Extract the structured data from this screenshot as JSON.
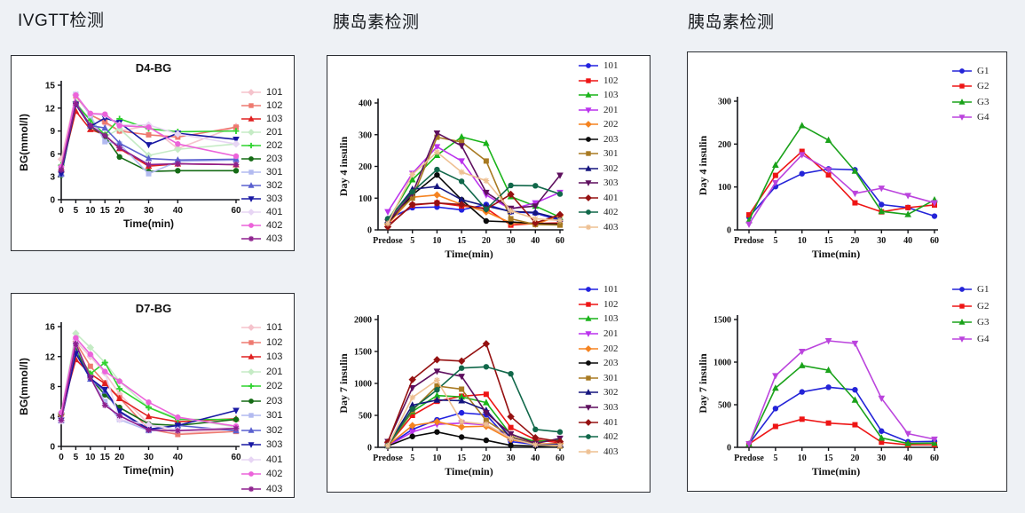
{
  "page": {
    "background": "#eef1f5",
    "panel_background": "#ffffff",
    "panel_border": "#2b2e33"
  },
  "headers": [
    {
      "id": "ivgtt",
      "text": "IVGTT检测"
    },
    {
      "id": "insulin1",
      "text": "胰岛素检测"
    },
    {
      "id": "insulin2",
      "text": "胰岛素检测"
    }
  ],
  "chart_data": [
    {
      "id": "d4_bg",
      "type": "line",
      "title": "D4-BG",
      "ylabel": "BG(mmol/l)",
      "xlabel": "Time(min)",
      "x_mode": "linear",
      "x_values": [
        0,
        5,
        10,
        15,
        20,
        30,
        40,
        60
      ],
      "x_ticks": [
        "0",
        "5",
        "10",
        "15",
        "20",
        "30",
        "40",
        "60"
      ],
      "ylim": [
        0,
        15
      ],
      "y_ticks": [
        0,
        3,
        6,
        9,
        12,
        15
      ],
      "legend_position": "right",
      "grid": false,
      "series": [
        {
          "name": "101",
          "color": "#f5c3cc",
          "marker": "diamond",
          "values": [
            5.3,
            13.7,
            11.2,
            10.0,
            9.0,
            9.7,
            6.7,
            9.6
          ]
        },
        {
          "name": "102",
          "color": "#ee7a70",
          "marker": "square",
          "values": [
            4.0,
            13.6,
            11.1,
            10.2,
            9.0,
            8.5,
            8.2,
            9.5
          ]
        },
        {
          "name": "103",
          "color": "#e02020",
          "marker": "triangle",
          "values": [
            3.9,
            11.6,
            9.2,
            8.5,
            6.7,
            4.4,
            4.7,
            4.6
          ]
        },
        {
          "name": "201",
          "color": "#c5ebc5",
          "marker": "diamond",
          "values": [
            4.5,
            12.8,
            10.3,
            8.2,
            9.3,
            5.8,
            6.6,
            7.3
          ]
        },
        {
          "name": "202",
          "color": "#2fd32f",
          "marker": "plus",
          "values": [
            4.5,
            12.6,
            10.4,
            8.5,
            10.6,
            9.3,
            8.9,
            9.0
          ]
        },
        {
          "name": "203",
          "color": "#156b15",
          "marker": "circle",
          "values": [
            3.2,
            12.5,
            9.6,
            8.3,
            5.6,
            3.7,
            3.8,
            3.8
          ]
        },
        {
          "name": "301",
          "color": "#b2baf0",
          "marker": "square",
          "values": [
            3.3,
            13.8,
            11.0,
            7.6,
            7.3,
            3.4,
            5.0,
            5.2
          ]
        },
        {
          "name": "302",
          "color": "#5a60cf",
          "marker": "triangle",
          "values": [
            3.4,
            12.7,
            9.7,
            9.4,
            7.4,
            5.4,
            5.2,
            5.3
          ]
        },
        {
          "name": "303",
          "color": "#1818a3",
          "marker": "triangle-down",
          "values": [
            3.4,
            12.5,
            9.6,
            10.7,
            10.1,
            7.2,
            8.7,
            7.9
          ]
        },
        {
          "name": "401",
          "color": "#e7d5f4",
          "marker": "diamond",
          "values": [
            4.3,
            13.8,
            11.2,
            11.1,
            9.8,
            9.8,
            8.6,
            7.3
          ]
        },
        {
          "name": "402",
          "color": "#ec63da",
          "marker": "circle",
          "values": [
            4.3,
            13.7,
            11.3,
            11.2,
            9.7,
            9.5,
            7.3,
            5.7
          ]
        },
        {
          "name": "403",
          "color": "#8d1f8d",
          "marker": "star",
          "values": [
            3.9,
            12.6,
            9.7,
            8.4,
            6.8,
            4.6,
            4.7,
            4.6
          ]
        }
      ]
    },
    {
      "id": "d7_bg",
      "type": "line",
      "title": "D7-BG",
      "ylabel": "BG(mmol/l)",
      "xlabel": "Time(min)",
      "x_mode": "linear",
      "x_values": [
        0,
        5,
        10,
        15,
        20,
        30,
        40,
        60
      ],
      "x_ticks": [
        "0",
        "5",
        "10",
        "15",
        "20",
        "30",
        "40",
        "60"
      ],
      "ylim": [
        0,
        16
      ],
      "y_ticks": [
        0,
        4,
        8,
        12,
        16
      ],
      "legend_position": "right",
      "grid": false,
      "series": [
        {
          "name": "101",
          "color": "#f5c3cc",
          "marker": "diamond",
          "values": [
            4.4,
            14.0,
            12.0,
            9.8,
            7.0,
            3.0,
            1.7,
            2.3
          ]
        },
        {
          "name": "102",
          "color": "#ee7a70",
          "marker": "square",
          "values": [
            4.3,
            13.9,
            10.7,
            8.5,
            6.5,
            2.3,
            1.6,
            2.0
          ]
        },
        {
          "name": "103",
          "color": "#e02020",
          "marker": "triangle",
          "values": [
            4.5,
            11.6,
            9.7,
            8.4,
            6.4,
            4.0,
            3.3,
            3.7
          ]
        },
        {
          "name": "201",
          "color": "#c5ebc5",
          "marker": "diamond",
          "values": [
            4.5,
            15.1,
            13.2,
            11.2,
            8.7,
            5.2,
            3.8,
            2.6
          ]
        },
        {
          "name": "202",
          "color": "#2fd32f",
          "marker": "plus",
          "values": [
            4.4,
            12.9,
            9.7,
            11.2,
            7.7,
            5.2,
            3.6,
            3.6
          ]
        },
        {
          "name": "203",
          "color": "#156b15",
          "marker": "circle",
          "values": [
            4.4,
            12.8,
            9.1,
            6.9,
            5.2,
            3.0,
            2.8,
            3.6
          ]
        },
        {
          "name": "301",
          "color": "#b2baf0",
          "marker": "square",
          "values": [
            3.4,
            13.6,
            9.2,
            6.0,
            3.6,
            2.1,
            2.2,
            2.4
          ]
        },
        {
          "name": "302",
          "color": "#5a60cf",
          "marker": "triangle",
          "values": [
            3.5,
            12.5,
            9.0,
            7.4,
            4.6,
            2.2,
            2.8,
            2.1
          ]
        },
        {
          "name": "303",
          "color": "#1818a3",
          "marker": "triangle-down",
          "values": [
            3.5,
            12.4,
            9.1,
            7.6,
            4.7,
            2.3,
            2.8,
            4.8
          ]
        },
        {
          "name": "401",
          "color": "#e7d5f4",
          "marker": "diamond",
          "values": [
            3.4,
            14.3,
            12.2,
            9.9,
            3.6,
            2.9,
            2.2,
            2.5
          ]
        },
        {
          "name": "402",
          "color": "#ec63da",
          "marker": "circle",
          "values": [
            4.5,
            14.5,
            12.3,
            10.0,
            8.7,
            5.9,
            3.9,
            2.7
          ]
        },
        {
          "name": "403",
          "color": "#8d1f8d",
          "marker": "star",
          "values": [
            3.5,
            13.7,
            9.2,
            5.5,
            4.1,
            2.2,
            2.1,
            2.4
          ]
        }
      ]
    },
    {
      "id": "day4_insulin_all",
      "type": "line",
      "title": "",
      "ylabel": "Day 4 insulin",
      "xlabel": "Time(min)",
      "x_mode": "categorical",
      "x_ticks": [
        "Predose",
        "5",
        "10",
        "15",
        "20",
        "30",
        "40",
        "60"
      ],
      "ylim": [
        0,
        400
      ],
      "y_ticks": [
        0,
        100,
        200,
        300,
        400
      ],
      "legend_position": "right",
      "grid": false,
      "series": [
        {
          "name": "101",
          "color": "#2222e0",
          "marker": "circle",
          "values": [
            35,
            70,
            72,
            63,
            80,
            57,
            53,
            30
          ]
        },
        {
          "name": "102",
          "color": "#ee1515",
          "marker": "square",
          "values": [
            13,
            78,
            85,
            75,
            68,
            15,
            20,
            22
          ]
        },
        {
          "name": "103",
          "color": "#1ab41a",
          "marker": "triangle",
          "values": [
            28,
            158,
            235,
            293,
            273,
            105,
            75,
            40
          ]
        },
        {
          "name": "201",
          "color": "#bb33ee",
          "marker": "triangle-down",
          "values": [
            57,
            178,
            262,
            217,
            110,
            65,
            85,
            118
          ]
        },
        {
          "name": "202",
          "color": "#f58320",
          "marker": "diamond",
          "values": [
            18,
            103,
            110,
            80,
            57,
            22,
            18,
            45
          ]
        },
        {
          "name": "203",
          "color": "#0a0a0a",
          "marker": "circle",
          "values": [
            22,
            110,
            173,
            95,
            28,
            25,
            20,
            18
          ]
        },
        {
          "name": "301",
          "color": "#a87a22",
          "marker": "square",
          "values": [
            30,
            100,
            292,
            277,
            217,
            35,
            17,
            15
          ]
        },
        {
          "name": "302",
          "color": "#15157e",
          "marker": "triangle",
          "values": [
            30,
            128,
            137,
            95,
            75,
            58,
            55,
            35
          ]
        },
        {
          "name": "303",
          "color": "#5e0f5e",
          "marker": "triangle-down",
          "values": [
            25,
            115,
            305,
            265,
            118,
            68,
            75,
            172
          ]
        },
        {
          "name": "401",
          "color": "#951111",
          "marker": "diamond",
          "values": [
            10,
            80,
            85,
            80,
            65,
            112,
            22,
            48
          ]
        },
        {
          "name": "402",
          "color": "#11684a",
          "marker": "circle",
          "values": [
            35,
            120,
            190,
            153,
            65,
            140,
            139,
            113
          ]
        },
        {
          "name": "403",
          "color": "#eec092",
          "marker": "star",
          "values": [
            20,
            175,
            245,
            182,
            155,
            60,
            35,
            30
          ]
        }
      ]
    },
    {
      "id": "day7_insulin_all",
      "type": "line",
      "title": "",
      "ylabel": "Day 7 insulin",
      "xlabel": "Time(min)",
      "x_mode": "categorical",
      "x_ticks": [
        "Predose",
        "5",
        "10",
        "15",
        "20",
        "30",
        "40",
        "60"
      ],
      "ylim": [
        0,
        2000
      ],
      "y_ticks": [
        0,
        500,
        1000,
        1500,
        2000
      ],
      "legend_position": "right",
      "grid": false,
      "series": [
        {
          "name": "101",
          "color": "#2222e0",
          "marker": "circle",
          "values": [
            25,
            280,
            430,
            540,
            510,
            90,
            45,
            40
          ]
        },
        {
          "name": "102",
          "color": "#ee1515",
          "marker": "square",
          "values": [
            30,
            500,
            720,
            800,
            830,
            310,
            120,
            70
          ]
        },
        {
          "name": "103",
          "color": "#1ab41a",
          "marker": "triangle",
          "values": [
            25,
            560,
            810,
            790,
            700,
            200,
            90,
            120
          ]
        },
        {
          "name": "201",
          "color": "#bb33ee",
          "marker": "triangle-down",
          "values": [
            20,
            240,
            360,
            380,
            350,
            150,
            50,
            40
          ]
        },
        {
          "name": "202",
          "color": "#f58320",
          "marker": "diamond",
          "values": [
            30,
            340,
            400,
            320,
            330,
            120,
            50,
            60
          ]
        },
        {
          "name": "203",
          "color": "#0a0a0a",
          "marker": "circle",
          "values": [
            20,
            170,
            240,
            160,
            110,
            30,
            20,
            30
          ]
        },
        {
          "name": "301",
          "color": "#a87a22",
          "marker": "square",
          "values": [
            30,
            580,
            960,
            910,
            420,
            170,
            50,
            20
          ]
        },
        {
          "name": "302",
          "color": "#15157e",
          "marker": "triangle",
          "values": [
            30,
            660,
            740,
            730,
            580,
            150,
            40,
            50
          ]
        },
        {
          "name": "303",
          "color": "#5e0f5e",
          "marker": "triangle-down",
          "values": [
            90,
            930,
            1190,
            1110,
            540,
            210,
            60,
            140
          ]
        },
        {
          "name": "401",
          "color": "#951111",
          "marker": "diamond",
          "values": [
            80,
            1060,
            1370,
            1350,
            1620,
            480,
            150,
            90
          ]
        },
        {
          "name": "402",
          "color": "#11684a",
          "marker": "circle",
          "values": [
            30,
            600,
            900,
            1240,
            1260,
            1150,
            280,
            240
          ]
        },
        {
          "name": "403",
          "color": "#eec092",
          "marker": "star",
          "values": [
            25,
            780,
            1050,
            400,
            360,
            140,
            40,
            30
          ]
        }
      ]
    },
    {
      "id": "day4_insulin_groups",
      "type": "line",
      "title": "",
      "ylabel": "Day 4 insulin",
      "xlabel": "Time(min)",
      "x_mode": "categorical",
      "x_ticks": [
        "Predose",
        "5",
        "10",
        "15",
        "20",
        "30",
        "40",
        "60"
      ],
      "ylim": [
        0,
        300
      ],
      "y_ticks": [
        0,
        100,
        200,
        300
      ],
      "legend_position": "right",
      "grid": false,
      "series": [
        {
          "name": "G1",
          "color": "#2424d8",
          "marker": "circle",
          "values": [
            30,
            101,
            131,
            142,
            140,
            59,
            52,
            32
          ]
        },
        {
          "name": "G2",
          "color": "#ee1515",
          "marker": "square",
          "values": [
            35,
            127,
            183,
            128,
            63,
            42,
            52,
            58
          ]
        },
        {
          "name": "G3",
          "color": "#1aa21a",
          "marker": "triangle",
          "values": [
            22,
            151,
            243,
            209,
            137,
            43,
            36,
            70
          ]
        },
        {
          "name": "G4",
          "color": "#bb44dd",
          "marker": "triangle-down",
          "values": [
            13,
            110,
            175,
            140,
            85,
            97,
            80,
            63
          ]
        }
      ]
    },
    {
      "id": "day7_insulin_groups",
      "type": "line",
      "title": "",
      "ylabel": "Day 7 insulin",
      "xlabel": "Time(min)",
      "x_mode": "categorical",
      "x_ticks": [
        "Predose",
        "5",
        "10",
        "15",
        "20",
        "30",
        "40",
        "60"
      ],
      "ylim": [
        0,
        1500
      ],
      "y_ticks": [
        0,
        500,
        1000,
        1500
      ],
      "legend_position": "right",
      "grid": false,
      "series": [
        {
          "name": "G1",
          "color": "#2424d8",
          "marker": "circle",
          "values": [
            40,
            455,
            650,
            705,
            675,
            190,
            65,
            70
          ]
        },
        {
          "name": "G2",
          "color": "#ee1515",
          "marker": "square",
          "values": [
            40,
            245,
            330,
            285,
            265,
            60,
            30,
            30
          ]
        },
        {
          "name": "G3",
          "color": "#1aa21a",
          "marker": "triangle",
          "values": [
            40,
            695,
            960,
            905,
            555,
            110,
            45,
            50
          ]
        },
        {
          "name": "G4",
          "color": "#bb44dd",
          "marker": "triangle-down",
          "values": [
            40,
            840,
            1125,
            1250,
            1220,
            575,
            160,
            95
          ]
        }
      ]
    }
  ]
}
